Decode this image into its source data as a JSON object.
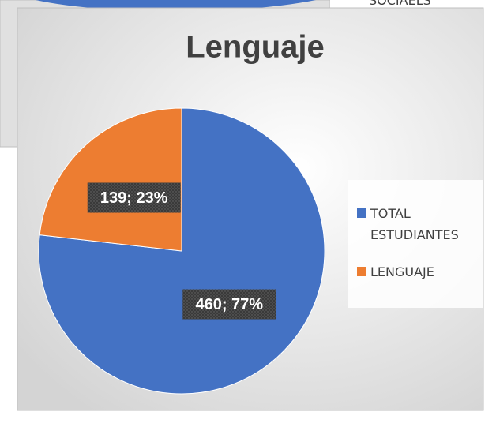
{
  "background_chart": {
    "legend_text": "SOCIAELS"
  },
  "chart_data": {
    "type": "pie",
    "title": "Lenguaje",
    "categories": [
      "TOTAL ESTUDIANTES",
      "LENGUAJE"
    ],
    "values": [
      460,
      139
    ],
    "value_labels": [
      "460; 77%",
      "139; 23%"
    ],
    "colors": [
      "#4472c4",
      "#ed7d31"
    ],
    "legend": "right"
  }
}
